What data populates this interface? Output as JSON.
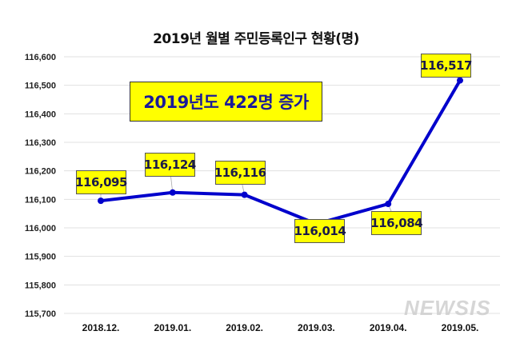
{
  "chart_data": {
    "type": "line",
    "title": "2019년 월별 주민등록인구 현황(명)",
    "categories": [
      "2018.12.",
      "2019.01.",
      "2019.02.",
      "2019.03.",
      "2019.04.",
      "2019.05."
    ],
    "series": [
      {
        "values": [
          116095,
          116124,
          116116,
          116014,
          116084,
          116517
        ]
      }
    ],
    "data_labels": [
      "116,095",
      "116,124",
      "116,116",
      "116,014",
      "116,084",
      "116,517"
    ],
    "yticks": [
      "115,700",
      "115,800",
      "115,900",
      "116,000",
      "116,100",
      "116,200",
      "116,300",
      "116,400",
      "116,500",
      "116,600"
    ],
    "ylim": [
      115700,
      116600
    ],
    "grid": true,
    "annotation": "2019년도 422명 증가",
    "colors": {
      "line": "#0000cc",
      "label_bg": "#ffff00",
      "label_text": "#1a1a4a",
      "annotation_text": "#1a1a9a",
      "grid": "#e0e0e0"
    }
  },
  "watermark": "NEWSIS"
}
